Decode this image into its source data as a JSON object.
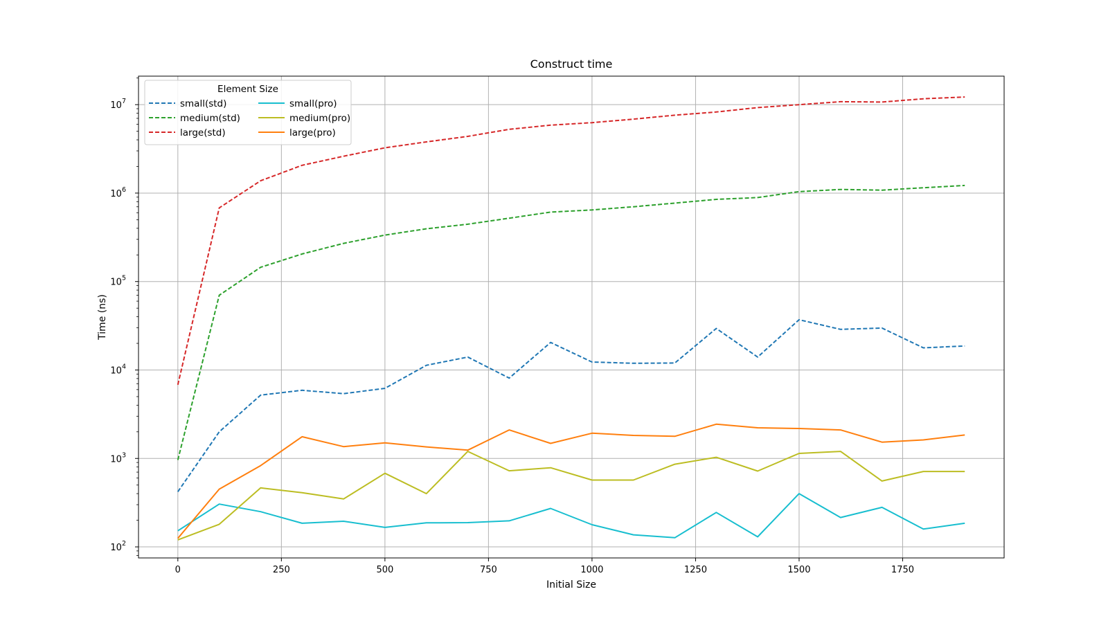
{
  "chart_data": {
    "type": "line",
    "title": "Construct time",
    "xlabel": "Initial Size",
    "ylabel": "Time (ns)",
    "yscale": "log",
    "xlim": [
      -95,
      1995
    ],
    "ylim": [
      75,
      21000000
    ],
    "x_ticks": [
      0,
      250,
      500,
      750,
      1000,
      1250,
      1500,
      1750
    ],
    "x_tick_labels": [
      "0",
      "250",
      "500",
      "750",
      "1000",
      "1250",
      "1500",
      "1750"
    ],
    "y_ticks": [
      100,
      1000,
      10000,
      100000,
      1000000,
      10000000
    ],
    "y_tick_labels": [
      {
        "base": "10",
        "exp": "2"
      },
      {
        "base": "10",
        "exp": "3"
      },
      {
        "base": "10",
        "exp": "4"
      },
      {
        "base": "10",
        "exp": "5"
      },
      {
        "base": "10",
        "exp": "6"
      },
      {
        "base": "10",
        "exp": "7"
      }
    ],
    "grid": true,
    "legend": {
      "title": "Element Size",
      "placement": "top-left",
      "columns": 2
    },
    "x": [
      0,
      100,
      200,
      300,
      400,
      500,
      600,
      700,
      800,
      900,
      1000,
      1100,
      1200,
      1300,
      1400,
      1500,
      1600,
      1700,
      1800,
      1900
    ],
    "series": [
      {
        "name": "small(std)",
        "color": "#1f77b4",
        "style": "dashed",
        "values": [
          420,
          2000,
          5200,
          5900,
          5400,
          6200,
          11300,
          14000,
          8100,
          20500,
          12300,
          11900,
          12000,
          29500,
          14000,
          37000,
          28800,
          29800,
          17800,
          18700
        ]
      },
      {
        "name": "medium(std)",
        "color": "#2ca02c",
        "style": "dashed",
        "values": [
          960,
          70000,
          145000,
          205000,
          270000,
          335000,
          395000,
          445000,
          520000,
          610000,
          645000,
          700000,
          770000,
          850000,
          890000,
          1040000,
          1100000,
          1080000,
          1150000,
          1220000
        ]
      },
      {
        "name": "large(std)",
        "color": "#d62728",
        "style": "dashed",
        "values": [
          6800,
          680000,
          1380000,
          2060000,
          2610000,
          3250000,
          3790000,
          4380000,
          5260000,
          5860000,
          6260000,
          6860000,
          7600000,
          8250000,
          9260000,
          10000000,
          10800000,
          10700000,
          11650000,
          12200000
        ]
      },
      {
        "name": "small(pro)",
        "color": "#17becf",
        "style": "solid",
        "values": [
          152,
          305,
          250,
          185,
          195,
          166,
          187,
          188,
          197,
          272,
          178,
          137,
          127,
          245,
          130,
          400,
          215,
          280,
          159,
          185
        ]
      },
      {
        "name": "medium(pro)",
        "color": "#bcbd22",
        "style": "solid",
        "values": [
          120,
          180,
          465,
          410,
          348,
          680,
          400,
          1200,
          725,
          785,
          570,
          570,
          860,
          1030,
          720,
          1140,
          1200,
          555,
          712,
          712
        ]
      },
      {
        "name": "large(pro)",
        "color": "#ff7f0e",
        "style": "solid",
        "values": [
          125,
          450,
          830,
          1760,
          1360,
          1500,
          1350,
          1240,
          2100,
          1480,
          1930,
          1820,
          1780,
          2440,
          2220,
          2180,
          2100,
          1530,
          1620,
          1840
        ]
      }
    ]
  }
}
